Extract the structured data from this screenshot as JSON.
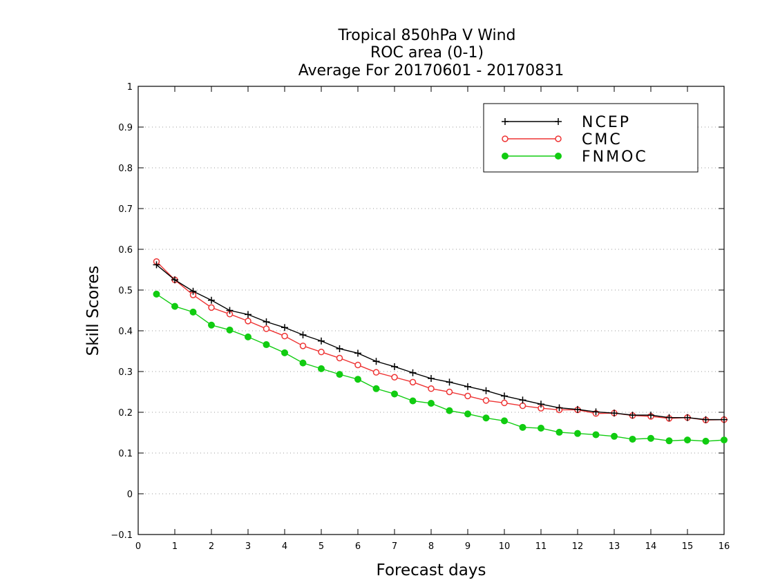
{
  "chart_data": {
    "type": "line",
    "title": [
      "Tropical 850hPa V Wind",
      "ROC area (0-1)",
      "Average For 20170601 - 20170831"
    ],
    "xlabel": "Forecast days",
    "ylabel": "Skill Scores",
    "xlim": [
      0,
      16
    ],
    "ylim": [
      -0.1,
      1
    ],
    "x_ticks": [
      "0",
      "1",
      "2",
      "3",
      "4",
      "5",
      "6",
      "7",
      "8",
      "9",
      "10",
      "11",
      "12",
      "13",
      "14",
      "15",
      "16"
    ],
    "y_ticks": [
      "−0.1",
      "0",
      "0.1",
      "0.2",
      "0.3",
      "0.4",
      "0.5",
      "0.6",
      "0.7",
      "0.8",
      "0.9",
      "1"
    ],
    "grid": "horizontal-dotted",
    "legend_position": "top-right",
    "x": [
      0.5,
      1,
      1.5,
      2,
      2.5,
      3,
      3.5,
      4,
      4.5,
      5,
      5.5,
      6,
      6.5,
      7,
      7.5,
      8,
      8.5,
      9,
      9.5,
      10,
      10.5,
      11,
      11.5,
      12,
      12.5,
      13,
      13.5,
      14,
      14.5,
      15,
      15.5,
      16
    ],
    "series": [
      {
        "name": "NCEP",
        "color": "#000000",
        "marker": "plus",
        "values": [
          0.562,
          0.525,
          0.497,
          0.475,
          0.45,
          0.44,
          0.422,
          0.408,
          0.39,
          0.375,
          0.356,
          0.345,
          0.325,
          0.312,
          0.297,
          0.283,
          0.274,
          0.263,
          0.253,
          0.24,
          0.23,
          0.22,
          0.211,
          0.207,
          0.201,
          0.198,
          0.193,
          0.193,
          0.187,
          0.187,
          0.182,
          0.182
        ]
      },
      {
        "name": "CMC",
        "color": "#ee3333",
        "marker": "open-circle",
        "values": [
          0.57,
          0.525,
          0.488,
          0.457,
          0.441,
          0.424,
          0.405,
          0.387,
          0.363,
          0.348,
          0.333,
          0.316,
          0.298,
          0.286,
          0.274,
          0.258,
          0.25,
          0.24,
          0.229,
          0.223,
          0.216,
          0.21,
          0.206,
          0.206,
          0.197,
          0.198,
          0.192,
          0.19,
          0.185,
          0.187,
          0.181,
          0.182
        ]
      },
      {
        "name": "FNMOC",
        "color": "#11cc11",
        "marker": "filled-circle",
        "values": [
          0.49,
          0.46,
          0.446,
          0.414,
          0.402,
          0.385,
          0.366,
          0.346,
          0.321,
          0.307,
          0.293,
          0.281,
          0.258,
          0.245,
          0.228,
          0.222,
          0.204,
          0.196,
          0.186,
          0.179,
          0.163,
          0.161,
          0.151,
          0.148,
          0.145,
          0.141,
          0.134,
          0.136,
          0.13,
          0.132,
          0.129,
          0.132
        ]
      }
    ]
  }
}
